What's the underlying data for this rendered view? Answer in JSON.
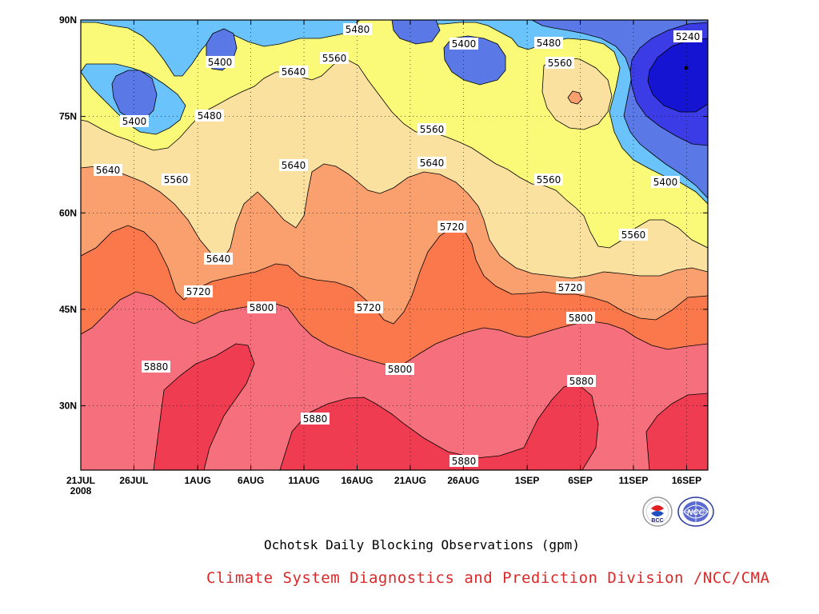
{
  "chart_data": {
    "type": "contour",
    "title": "Ochotsk Daily Blocking Observations (gpm)",
    "xaxis": {
      "ticks": [
        "21JUL\n2008",
        "26JUL",
        "1AUG",
        "6AUG",
        "11AUG",
        "16AUG",
        "21AUG",
        "26AUG",
        "1SEP",
        "6SEP",
        "11SEP",
        "16SEP"
      ],
      "range": [
        "2008-07-21",
        "2008-09-18"
      ]
    },
    "yaxis": {
      "ticks": [
        "90N",
        "75N",
        "60N",
        "45N",
        "30N"
      ],
      "range": [
        20,
        90
      ]
    },
    "contour_interval": 80,
    "contour_levels": [
      5240,
      5320,
      5400,
      5480,
      5560,
      5640,
      5720,
      5800,
      5880
    ],
    "contour_labels": [
      "5480",
      "5400",
      "5480",
      "5560",
      "5400",
      "5240",
      "5560",
      "5640",
      "5400",
      "5480",
      "5560",
      "5640",
      "5560",
      "5640",
      "5560",
      "5640",
      "5400",
      "5560",
      "5720",
      "5640",
      "5720",
      "5720",
      "5800",
      "5720",
      "5800",
      "5880",
      "5800",
      "5880",
      "5880",
      "5880"
    ],
    "colors": {
      "lt5240": "#1414d2",
      "b5240": "#3c3ce6",
      "b5320": "#5a78e6",
      "b5400": "#6ac3fa",
      "b5480": "#fafa78",
      "b5560": "#fae1a0",
      "b5640": "#faa06e",
      "b5720": "#fa784b",
      "b5800": "#f5707c",
      "gt5880": "#f03c50"
    }
  },
  "footer": {
    "credit": "Climate System Diagnostics and Prediction Division /NCC/CMA",
    "credit_color": "#dc2828"
  },
  "logos": [
    {
      "icon": "bcc-logo",
      "text": "BCC"
    },
    {
      "icon": "ncc-logo",
      "text": "NCC"
    }
  ]
}
